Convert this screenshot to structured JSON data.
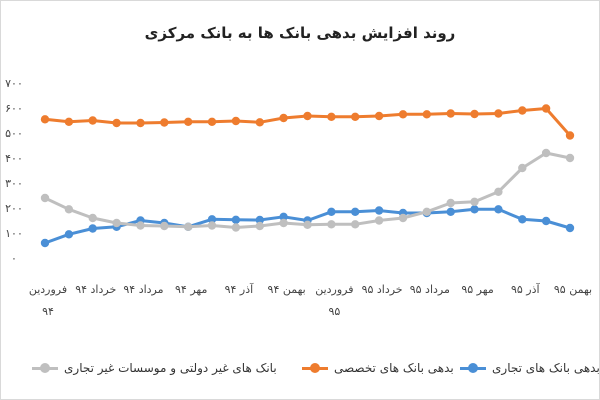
{
  "chart_data": {
    "type": "line",
    "title": "روند افزایش بدهی بانک ها به بانک مرکزی",
    "ylim": [
      0,
      700
    ],
    "yticks": [
      "۰",
      "۱۰۰",
      "۲۰۰",
      "۳۰۰",
      "۴۰۰",
      "۵۰۰",
      "۶۰۰",
      "۷۰۰"
    ],
    "grid": false,
    "legend_position": "bottom",
    "x_labels": [
      "فروردین ۹۴",
      "خرداد ۹۴",
      "مرداد ۹۴",
      "مهر ۹۴",
      "آذر ۹۴",
      "بهمن ۹۴",
      "فروردین ۹۵",
      "خرداد ۹۵",
      "مرداد ۹۵",
      "مهر ۹۵",
      "آذر ۹۵",
      "بهمن ۹۵"
    ],
    "series": [
      {
        "name": "بدهی بانک های تجاری",
        "color": "#4a8fd6",
        "values": [
          60,
          95,
          118,
          125,
          150,
          140,
          125,
          155,
          153,
          152,
          165,
          150,
          185,
          185,
          190,
          180,
          180,
          185,
          195,
          195,
          155,
          148,
          120
        ]
      },
      {
        "name": "بدهی بانک های تخصصی",
        "color": "#ee7c2e",
        "values": [
          555,
          545,
          550,
          540,
          540,
          542,
          545,
          545,
          548,
          543,
          560,
          568,
          565,
          565,
          568,
          575,
          575,
          578,
          576,
          578,
          590,
          598,
          490
        ]
      },
      {
        "name": "بانک های غیر دولتی و موسسات غیر تجاری",
        "color": "#bfbfbf",
        "values": [
          240,
          195,
          160,
          140,
          130,
          128,
          125,
          130,
          122,
          128,
          140,
          133,
          135,
          135,
          150,
          160,
          185,
          220,
          225,
          265,
          360,
          420,
          400
        ]
      }
    ]
  }
}
